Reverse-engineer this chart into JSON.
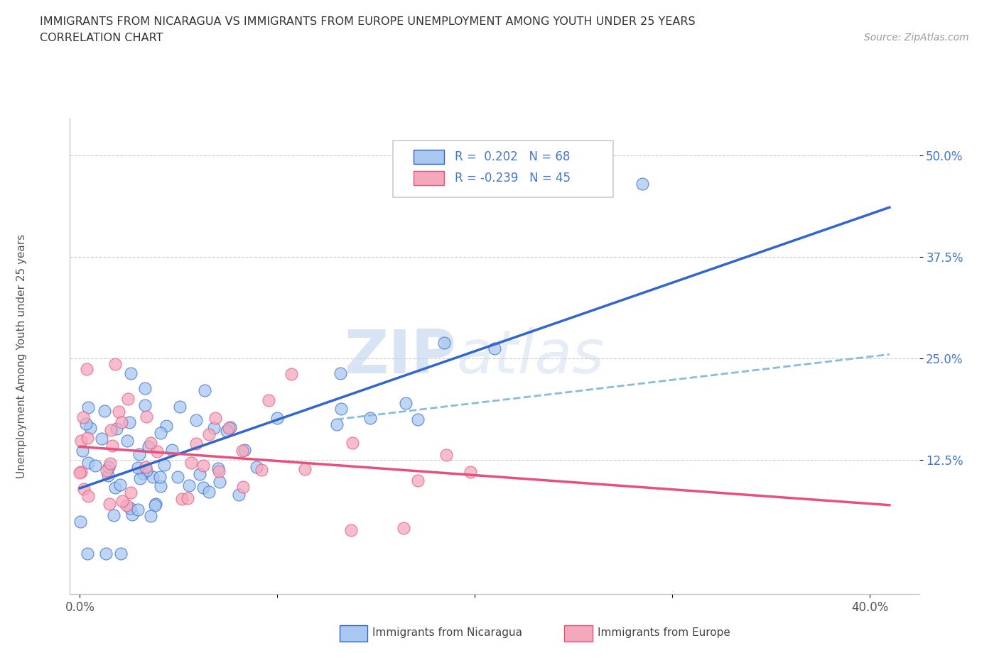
{
  "title_line1": "IMMIGRANTS FROM NICARAGUA VS IMMIGRANTS FROM EUROPE UNEMPLOYMENT AMONG YOUTH UNDER 25 YEARS",
  "title_line2": "CORRELATION CHART",
  "source_text": "Source: ZipAtlas.com",
  "ylabel": "Unemployment Among Youth under 25 years",
  "xlim": [
    -0.005,
    0.425
  ],
  "ylim": [
    -0.04,
    0.545
  ],
  "r_nicaragua": 0.202,
  "n_nicaragua": 68,
  "r_europe": -0.239,
  "n_europe": 45,
  "color_nicaragua": "#A8C8F0",
  "color_europe": "#F4A8BC",
  "color_nicaragua_line": "#3366CC",
  "color_europe_line": "#E8507A",
  "color_trend_dash": "#88BBDD",
  "watermark_zip": "ZIP",
  "watermark_atlas": "atlas",
  "grid_color": "#CCCCCC",
  "right_tick_color": "#4477CC"
}
